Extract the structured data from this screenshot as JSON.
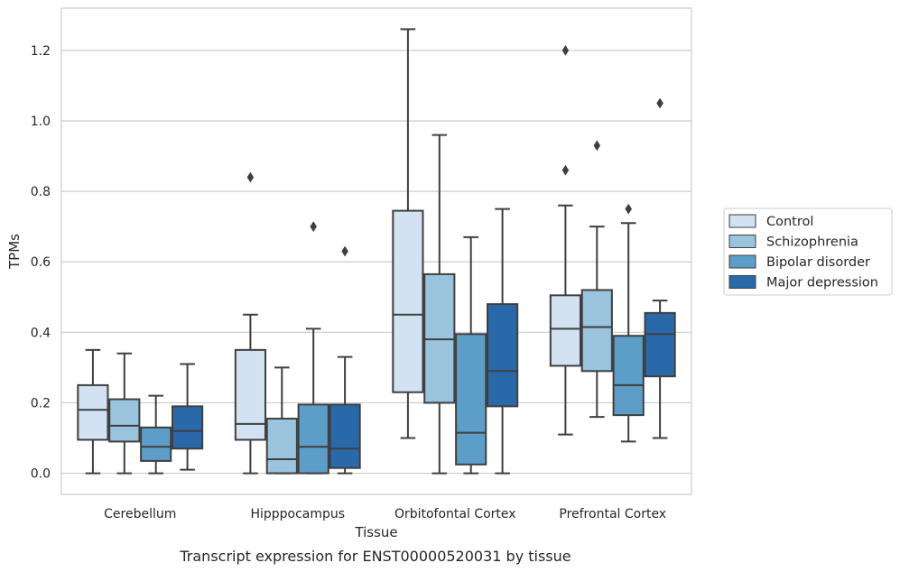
{
  "chart_data": {
    "type": "box",
    "title": "",
    "caption": "Transcript expression for ENST00000520031 by tissue",
    "xlabel": "Tissue",
    "ylabel": "TPMs",
    "ylim": [
      -0.06,
      1.32
    ],
    "yticks": [
      0.0,
      0.2,
      0.4,
      0.6,
      0.8,
      1.0,
      1.2
    ],
    "ytick_labels": [
      "0.0",
      "0.2",
      "0.4",
      "0.6",
      "0.8",
      "1.0",
      "1.2"
    ],
    "grid": "horizontal",
    "legend_position": "right",
    "categories": [
      "Cerebellum",
      "Hipppocampus",
      "Orbitofontal Cortex",
      "Prefrontal Cortex"
    ],
    "series": [
      {
        "name": "Control",
        "color": "#d2e2f2",
        "boxes": [
          {
            "whislo": 0.0,
            "q1": 0.095,
            "med": 0.18,
            "q3": 0.25,
            "whishi": 0.35,
            "fliers": []
          },
          {
            "whislo": 0.0,
            "q1": 0.095,
            "med": 0.14,
            "q3": 0.35,
            "whishi": 0.45,
            "fliers": [
              0.84
            ]
          },
          {
            "whislo": 0.1,
            "q1": 0.23,
            "med": 0.45,
            "q3": 0.745,
            "whishi": 1.26,
            "fliers": []
          },
          {
            "whislo": 0.11,
            "q1": 0.305,
            "med": 0.41,
            "q3": 0.505,
            "whishi": 0.76,
            "fliers": [
              0.86,
              1.2
            ]
          }
        ]
      },
      {
        "name": "Schizophrenia",
        "color": "#9ac3de",
        "boxes": [
          {
            "whislo": 0.0,
            "q1": 0.09,
            "med": 0.135,
            "q3": 0.21,
            "whishi": 0.34,
            "fliers": []
          },
          {
            "whislo": 0.0,
            "q1": 0.0,
            "med": 0.04,
            "q3": 0.155,
            "whishi": 0.3,
            "fliers": []
          },
          {
            "whislo": 0.0,
            "q1": 0.2,
            "med": 0.38,
            "q3": 0.565,
            "whishi": 0.96,
            "fliers": []
          },
          {
            "whislo": 0.16,
            "q1": 0.29,
            "med": 0.415,
            "q3": 0.52,
            "whishi": 0.7,
            "fliers": [
              0.93
            ]
          }
        ]
      },
      {
        "name": "Bipolar disorder",
        "color": "#5d9ec9",
        "boxes": [
          {
            "whislo": 0.0,
            "q1": 0.035,
            "med": 0.075,
            "q3": 0.13,
            "whishi": 0.22,
            "fliers": []
          },
          {
            "whislo": 0.0,
            "q1": 0.0,
            "med": 0.075,
            "q3": 0.195,
            "whishi": 0.41,
            "fliers": [
              0.7
            ]
          },
          {
            "whislo": 0.0,
            "q1": 0.025,
            "med": 0.115,
            "q3": 0.395,
            "whishi": 0.67,
            "fliers": []
          },
          {
            "whislo": 0.09,
            "q1": 0.165,
            "med": 0.25,
            "q3": 0.39,
            "whishi": 0.71,
            "fliers": [
              0.75
            ]
          }
        ]
      },
      {
        "name": "Major depression",
        "color": "#2a69a9",
        "boxes": [
          {
            "whislo": 0.01,
            "q1": 0.07,
            "med": 0.12,
            "q3": 0.19,
            "whishi": 0.31,
            "fliers": []
          },
          {
            "whislo": 0.0,
            "q1": 0.015,
            "med": 0.07,
            "q3": 0.195,
            "whishi": 0.33,
            "fliers": [
              0.63
            ]
          },
          {
            "whislo": 0.0,
            "q1": 0.19,
            "med": 0.29,
            "q3": 0.48,
            "whishi": 0.75,
            "fliers": []
          },
          {
            "whislo": 0.1,
            "q1": 0.275,
            "med": 0.395,
            "q3": 0.455,
            "whishi": 0.49,
            "fliers": [
              1.05
            ]
          }
        ]
      }
    ]
  }
}
